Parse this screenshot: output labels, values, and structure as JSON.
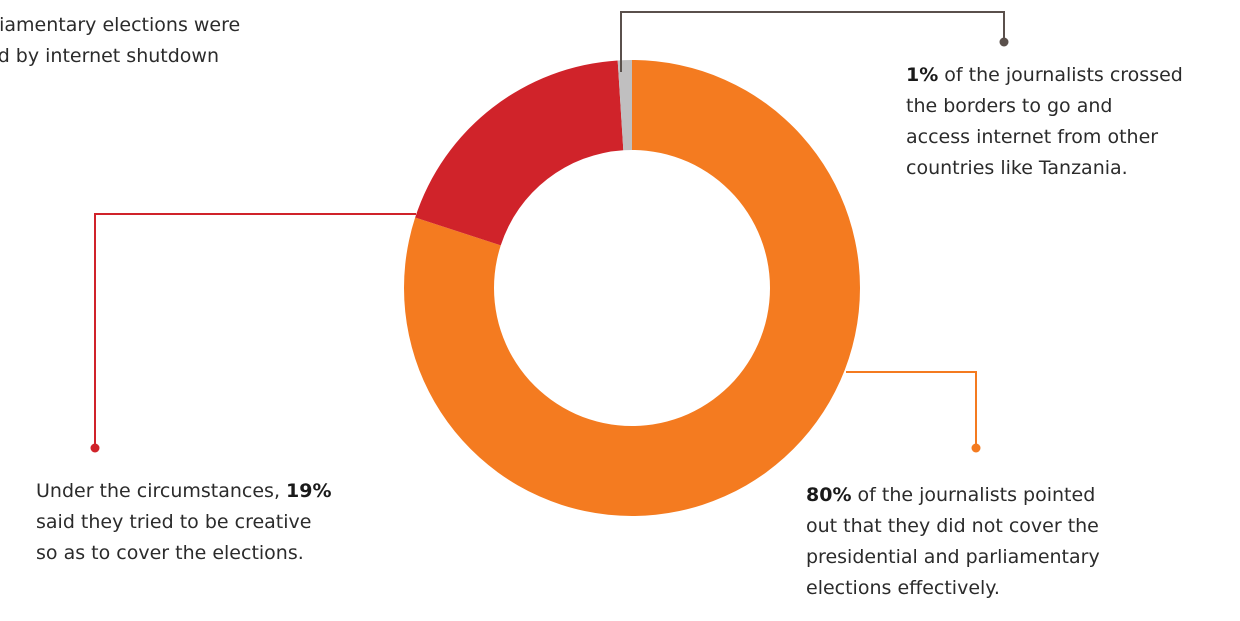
{
  "caption": {
    "lines": [
      "rliamentary elections were",
      "ed by internet shutdown"
    ]
  },
  "chart_data": {
    "type": "pie",
    "donut": true,
    "slices": [
      {
        "label": "did not cover the presidential and parliamentary elections effectively",
        "value": 80,
        "color": "#F47B20"
      },
      {
        "label": "tried to be creative so as to cover the elections",
        "value": 19,
        "color": "#D0232A"
      },
      {
        "label": "crossed the borders to go and access internet from other countries like Tanzania",
        "value": 1,
        "color": "#C0BFC0"
      }
    ],
    "annotations": {
      "orange": {
        "pct": "80%",
        "lines": [
          " of the journalists pointed",
          "out that they did not cover the",
          "presidential and parliamentary",
          "elections effectively."
        ]
      },
      "red": {
        "prefix": "Under the circumstances, ",
        "pct": "19%",
        "lines": [
          "said they tried to be creative",
          "so as to cover the elections."
        ]
      },
      "gray": {
        "pct": "1%",
        "lines": [
          " of the journalists crossed",
          "the borders to go and",
          "access internet from other",
          "countries like Tanzania."
        ]
      }
    },
    "leader_colors": {
      "orange": "#F47B20",
      "red": "#D0232A",
      "gray": "#5A504C"
    }
  }
}
